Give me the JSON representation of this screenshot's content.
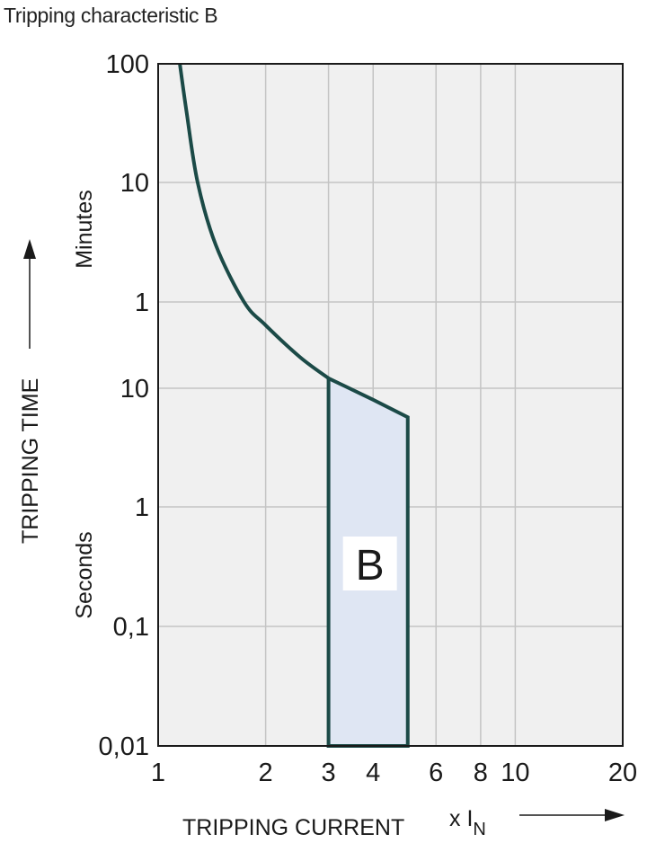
{
  "chart_data": {
    "type": "line",
    "title": "Tripping characteristic B",
    "xlabel": "TRIPPING CURRENT",
    "xlabel_unit": "x I",
    "xlabel_unit_subscript": "N",
    "ylabel": "TRIPPING TIME",
    "x_scale": "log",
    "y_scale": "log",
    "xlim": [
      1,
      20
    ],
    "ylim_seconds": [
      0.01,
      6000
    ],
    "grid": true,
    "x_ticks": [
      {
        "value": 1,
        "label": "1"
      },
      {
        "value": 2,
        "label": "2"
      },
      {
        "value": 3,
        "label": "3"
      },
      {
        "value": 4,
        "label": "4"
      },
      {
        "value": 6,
        "label": "6"
      },
      {
        "value": 8,
        "label": "8"
      },
      {
        "value": 10,
        "label": "10"
      },
      {
        "value": 20,
        "label": "20"
      }
    ],
    "y_unit_groups": [
      {
        "label": "Minutes",
        "ticks": [
          {
            "seconds": 6000,
            "label": "100"
          },
          {
            "seconds": 600,
            "label": "10"
          },
          {
            "seconds": 60,
            "label": "1"
          }
        ]
      },
      {
        "label": "Seconds",
        "ticks": [
          {
            "seconds": 10,
            "label": "10"
          },
          {
            "seconds": 1,
            "label": "1"
          },
          {
            "seconds": 0.1,
            "label": "0,1"
          },
          {
            "seconds": 0.01,
            "label": "0,01"
          }
        ]
      }
    ],
    "thermal_curve": {
      "x": [
        1.15,
        1.2,
        1.29,
        1.45,
        1.74,
        2.0,
        2.5,
        3.0
      ],
      "y_seconds": [
        6000,
        2400,
        600,
        180,
        60,
        37,
        19,
        12.3
      ]
    },
    "magnetic_region": {
      "label": "B",
      "x_range": [
        3,
        5
      ],
      "top_edge": {
        "x": [
          3,
          4,
          5
        ],
        "y_seconds": [
          12.3,
          8,
          5.7
        ]
      },
      "bottom_seconds": 0.01
    },
    "colors": {
      "curve": "#1b4a47",
      "region_fill": "#dfe6f3",
      "plot_background": "#f0f0f0",
      "grid": "#c4c4c4"
    }
  }
}
